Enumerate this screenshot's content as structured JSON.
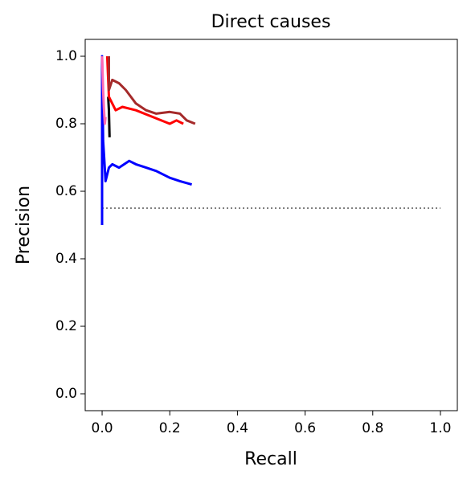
{
  "chart_data": {
    "type": "line",
    "title": "Direct causes",
    "xlabel": "Recall",
    "ylabel": "Precision",
    "xlim": [
      -0.05,
      1.05
    ],
    "ylim": [
      -0.05,
      1.05
    ],
    "xticks": [
      {
        "value": 0,
        "label": "0.0"
      },
      0.2,
      0.4,
      0.6,
      0.8,
      {
        "value": 1,
        "label": "1.0"
      }
    ],
    "yticks": [
      {
        "value": 0,
        "label": "0.0"
      },
      0.2,
      0.4,
      0.6,
      0.8,
      {
        "value": 1,
        "label": "1.0"
      }
    ],
    "grid": false,
    "series": [
      {
        "color": "#808080",
        "linestyle": "dotted",
        "x": [
          0,
          1
        ],
        "y": [
          0.55,
          0.55
        ]
      },
      {
        "color": "#0000ff",
        "linestyle": "solid",
        "x": [
          0,
          0,
          0.003,
          0.006,
          0.01,
          0.02,
          0.03,
          0.05,
          0.08,
          0.1,
          0.13,
          0.16,
          0.2,
          0.23,
          0.265
        ],
        "y": [
          0.5,
          1.0,
          0.75,
          0.7,
          0.63,
          0.67,
          0.68,
          0.67,
          0.69,
          0.68,
          0.67,
          0.66,
          0.64,
          0.63,
          0.62
        ]
      },
      {
        "color": "#000000",
        "linestyle": "solid",
        "x": [
          0.018,
          0.02,
          0.022
        ],
        "y": [
          0.88,
          0.84,
          0.76
        ]
      },
      {
        "color": "#ff69b4",
        "linestyle": "solid",
        "x": [
          0,
          0.003,
          0.005,
          0.008,
          0.01
        ],
        "y": [
          1.0,
          0.9,
          0.85,
          0.8,
          0.82
        ]
      },
      {
        "color": "#ff0000",
        "linestyle": "solid",
        "x": [
          0.015,
          0.02,
          0.03,
          0.04,
          0.06,
          0.1,
          0.15,
          0.2,
          0.22,
          0.24
        ],
        "y": [
          1.0,
          0.88,
          0.86,
          0.84,
          0.85,
          0.84,
          0.82,
          0.8,
          0.81,
          0.8
        ]
      },
      {
        "color": "#a52a2a",
        "linestyle": "solid",
        "x": [
          0.02,
          0.02,
          0.03,
          0.05,
          0.07,
          0.1,
          0.13,
          0.16,
          0.2,
          0.23,
          0.25,
          0.275
        ],
        "y": [
          1.0,
          0.9,
          0.93,
          0.92,
          0.9,
          0.86,
          0.84,
          0.83,
          0.835,
          0.83,
          0.81,
          0.8
        ]
      }
    ]
  }
}
